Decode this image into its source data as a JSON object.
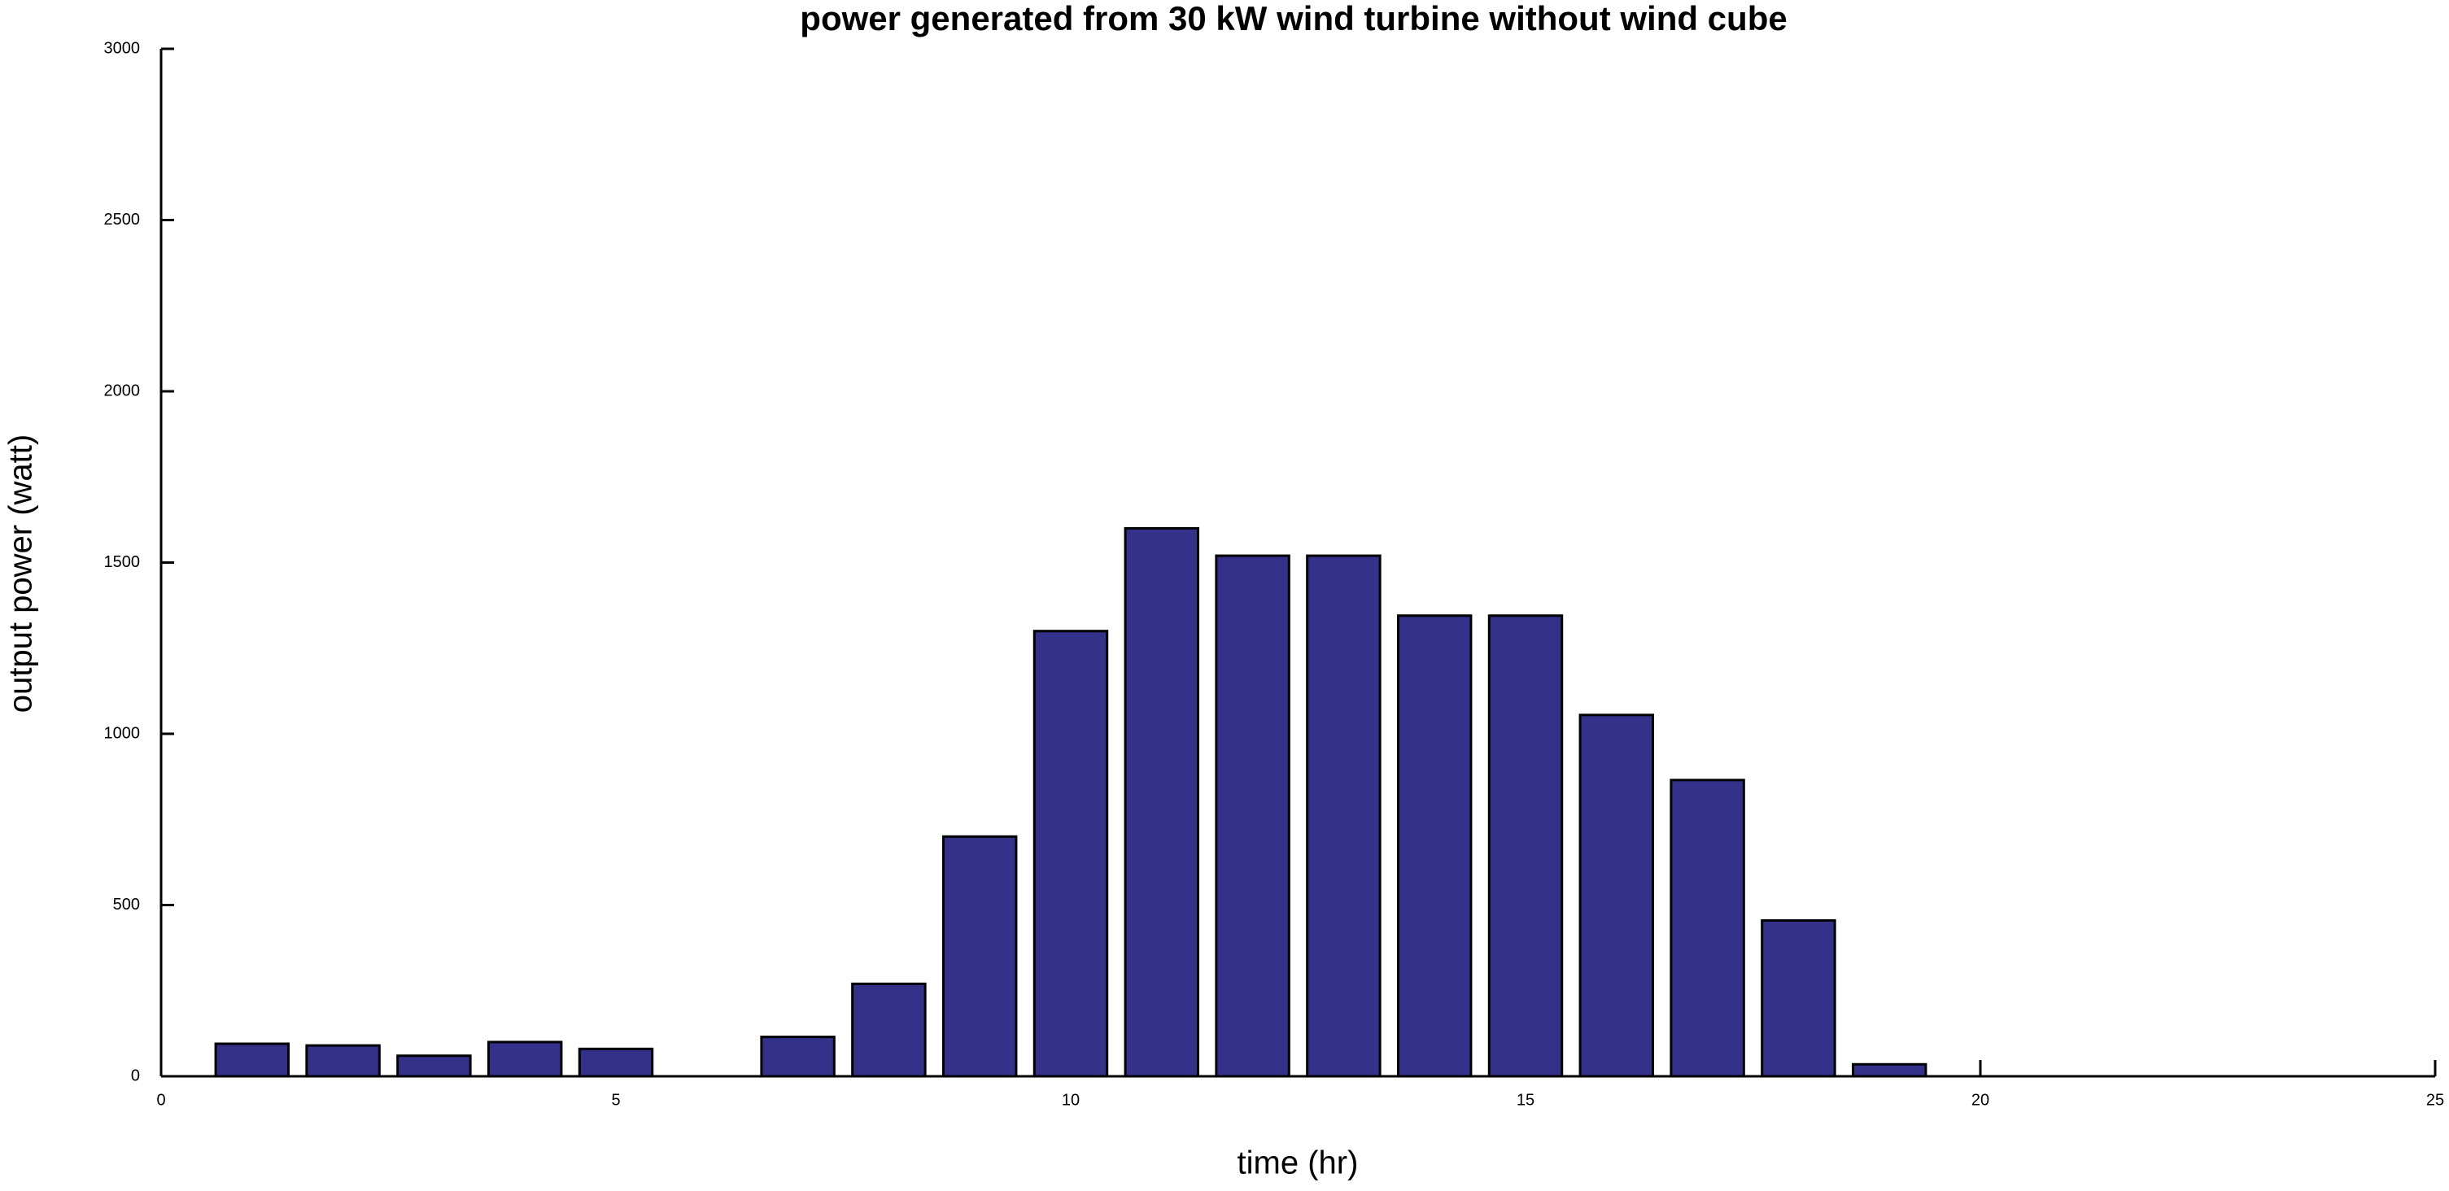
{
  "chart_data": {
    "type": "bar",
    "title": "power generated from 30 kW wind turbine without wind cube",
    "x_label": "time (hr)",
    "y_label": "output power (watt)",
    "x": [
      1,
      2,
      3,
      4,
      5,
      6,
      7,
      8,
      9,
      10,
      11,
      12,
      13,
      14,
      15,
      16,
      17,
      18,
      19
    ],
    "values": [
      95,
      90,
      60,
      100,
      80,
      0,
      115,
      270,
      700,
      1300,
      1600,
      1520,
      1520,
      1345,
      1345,
      1055,
      865,
      455,
      35
    ],
    "color": "#33318a",
    "xlim": [
      0,
      25
    ],
    "xticks": [
      0,
      5,
      10,
      15,
      20,
      25
    ],
    "ylim": [
      0,
      3000
    ],
    "yticks": [
      0,
      500,
      1000,
      1500,
      2000,
      2500,
      3000
    ],
    "grid": false
  }
}
